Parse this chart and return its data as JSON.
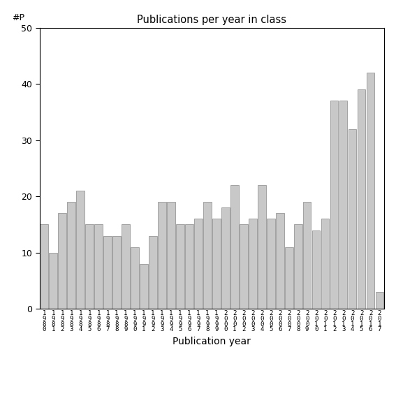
{
  "years": [
    1980,
    1981,
    1982,
    1983,
    1984,
    1985,
    1986,
    1987,
    1988,
    1989,
    1990,
    1991,
    1992,
    1993,
    1994,
    1995,
    1996,
    1997,
    1998,
    1999,
    2000,
    2001,
    2002,
    2003,
    2004,
    2005,
    2006,
    2007,
    2008,
    2009,
    2010,
    2011,
    2012,
    2013,
    2014,
    2015,
    2016,
    2017
  ],
  "values": [
    15,
    10,
    17,
    19,
    21,
    15,
    15,
    13,
    13,
    15,
    11,
    8,
    13,
    19,
    19,
    15,
    15,
    16,
    19,
    16,
    18,
    22,
    15,
    16,
    22,
    16,
    17,
    11,
    15,
    19,
    14,
    16,
    37,
    37,
    32,
    39,
    42,
    3
  ],
  "title": "Publications per year in class",
  "xlabel": "Publication year",
  "ylabel": "#P",
  "ylim": [
    0,
    50
  ],
  "yticks": [
    0,
    10,
    20,
    30,
    40,
    50
  ],
  "bar_color": "#c8c8c8",
  "bar_edgecolor": "#888888",
  "background_color": "#ffffff",
  "figsize": [
    5.67,
    5.67
  ],
  "dpi": 100
}
